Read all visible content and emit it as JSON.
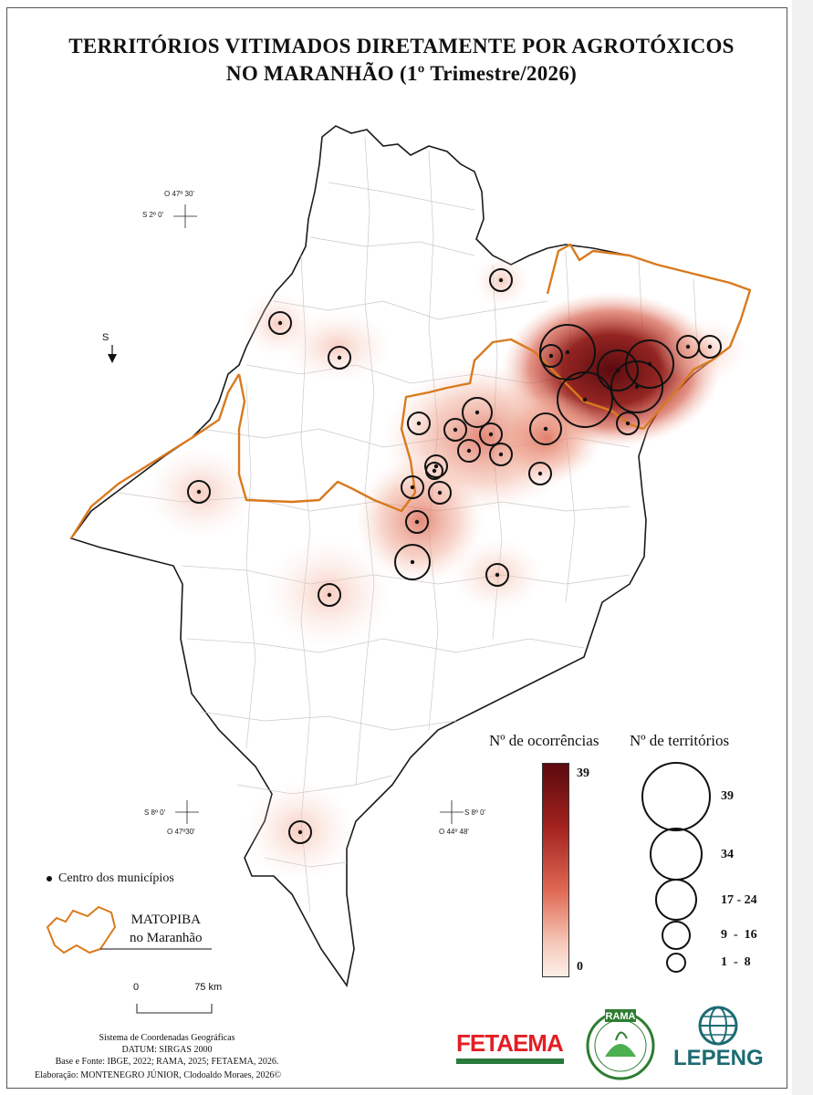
{
  "title": {
    "line1": "TERRITÓRIOS VITIMADOS DIRETAMENTE POR AGROTÓXICOS",
    "line2": "NO MARANHÃO (1º Trimestre/2026)"
  },
  "coords": {
    "nw_lon": "O 47º 30'",
    "nw_lat": "S 2º 0'",
    "sw_lat": "S 8º 0'",
    "sw_lon": "O 47º30'",
    "se_lat": "S 8º 0'",
    "se_lon": "O 44º 48'"
  },
  "north_arrow": {
    "label": "S"
  },
  "legend": {
    "occurrences_title": "Nº de ocorrências",
    "territories_title": "Nº de territórios",
    "gradient_max": "39",
    "gradient_min": "0",
    "circle_classes": [
      "39",
      "34",
      "17 - 24",
      "9  -  16",
      "1  -  8"
    ],
    "centro_label": "Centro dos municípios",
    "matopiba_label_line1": "MATOPIBA",
    "matopiba_label_line2": "no Maranhão",
    "colors": {
      "max": "#5b0a0f",
      "min": "#fcefe8",
      "matopiba_outline": "#d97a1e"
    }
  },
  "scale_bar": {
    "start": "0",
    "end": "75 km"
  },
  "footer": {
    "line1": "Sistema de Coordenadas Geográficas",
    "line2": "DATUM: SIRGAS 2000",
    "line3": "Base e Fonte: IBGE, 2022; RAMA, 2025; FETAEMA, 2026.",
    "credit": "Elaboração: MONTENEGRO JÚNIOR, Clodoaldo Moraes, 2026©"
  },
  "logos": {
    "fetaema": "FETAEMA",
    "rama": "RAMA",
    "lepeng": "LEPENG"
  }
}
